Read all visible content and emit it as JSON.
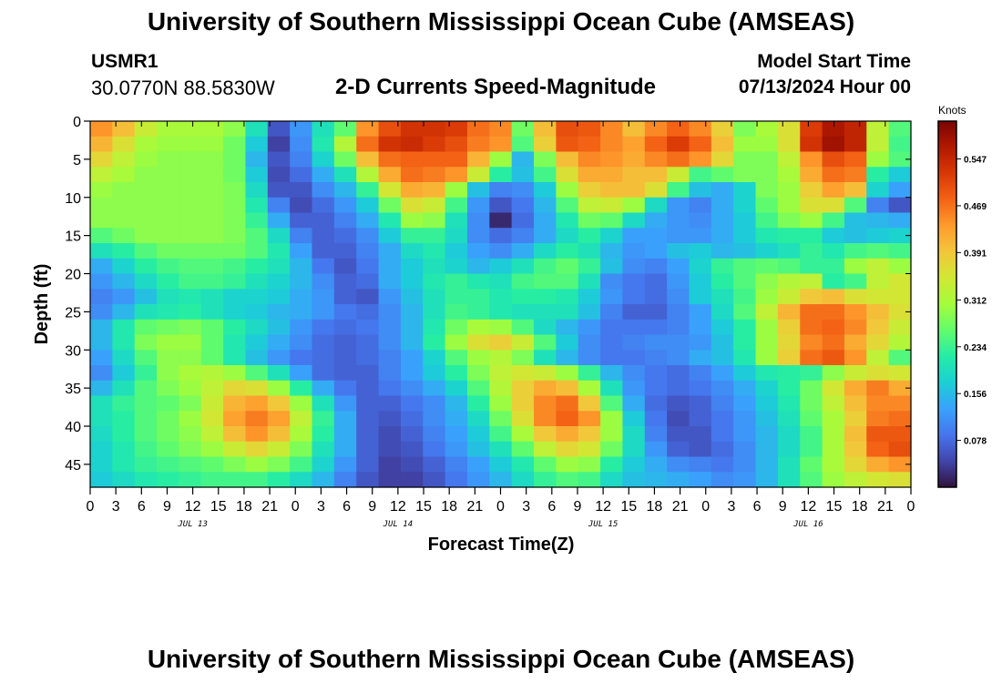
{
  "header": {
    "title": "University of Southern Mississippi Ocean Cube (AMSEAS)",
    "station_id": "USMR1",
    "station_coords": "30.0770N  88.5830W",
    "plot_title": "2-D Currents Speed-Magnitude",
    "start_label": "Model Start Time",
    "start_value": "07/13/2024 Hour 00"
  },
  "footer": {
    "title": "University of Southern Mississippi Ocean Cube (AMSEAS)"
  },
  "chart_data": {
    "type": "heatmap",
    "xlabel": "Forecast Time(Z)",
    "ylabel": "Depth (ft)",
    "x_tick_labels": [
      "0",
      "3",
      "6",
      "9",
      "12",
      "15",
      "18",
      "21",
      "0",
      "3",
      "6",
      "9",
      "12",
      "15",
      "18",
      "21",
      "0",
      "3",
      "6",
      "9",
      "12",
      "15",
      "18",
      "21",
      "0",
      "3",
      "6",
      "9",
      "12",
      "15",
      "18",
      "21",
      "0"
    ],
    "x_range_hours": [
      0,
      96
    ],
    "date_labels": [
      {
        "label": "JUL 13",
        "hour": 12
      },
      {
        "label": "JUL 14",
        "hour": 36
      },
      {
        "label": "JUL 15",
        "hour": 60
      },
      {
        "label": "JUL 16",
        "hour": 84
      }
    ],
    "y_tick_labels": [
      "0",
      "5",
      "10",
      "15",
      "20",
      "25",
      "30",
      "35",
      "40",
      "45"
    ],
    "ylim": [
      0,
      48
    ],
    "y_reversed": true,
    "colorbar": {
      "unit": "Knots",
      "tick_labels": [
        "0.547",
        "0.469",
        "0.391",
        "0.312",
        "0.234",
        "0.156",
        "0.078"
      ],
      "range": [
        0,
        0.61
      ]
    },
    "colorscale": [
      "#30123b",
      "#4145ab",
      "#4675ed",
      "#39a2fc",
      "#1bcfd4",
      "#24eca6",
      "#61fc6c",
      "#a4fc3b",
      "#d1e834",
      "#f3c63a",
      "#fe9b2d",
      "#f36315",
      "#d93806",
      "#b11901",
      "#7a0402"
    ],
    "speed_knots": [
      [
        0.44,
        0.4,
        0.34,
        0.31,
        0.31,
        0.31,
        0.29,
        0.2,
        0.06,
        0.12,
        0.2,
        0.26,
        0.44,
        0.5,
        0.53,
        0.53,
        0.52,
        0.47,
        0.45,
        0.27,
        0.4,
        0.5,
        0.49,
        0.45,
        0.4,
        0.45,
        0.48,
        0.45,
        0.38,
        0.28,
        0.31,
        0.36,
        0.52,
        0.57,
        0.55,
        0.33,
        0.25
      ],
      [
        0.41,
        0.36,
        0.31,
        0.3,
        0.3,
        0.3,
        0.27,
        0.17,
        0.04,
        0.11,
        0.21,
        0.32,
        0.47,
        0.53,
        0.54,
        0.52,
        0.5,
        0.46,
        0.44,
        0.25,
        0.38,
        0.49,
        0.48,
        0.45,
        0.43,
        0.48,
        0.52,
        0.48,
        0.4,
        0.3,
        0.3,
        0.36,
        0.53,
        0.58,
        0.55,
        0.33,
        0.24
      ],
      [
        0.37,
        0.33,
        0.3,
        0.29,
        0.29,
        0.29,
        0.27,
        0.15,
        0.06,
        0.1,
        0.18,
        0.27,
        0.4,
        0.47,
        0.48,
        0.48,
        0.48,
        0.41,
        0.3,
        0.15,
        0.28,
        0.4,
        0.45,
        0.44,
        0.42,
        0.45,
        0.47,
        0.44,
        0.37,
        0.28,
        0.28,
        0.33,
        0.44,
        0.5,
        0.48,
        0.3,
        0.25
      ],
      [
        0.33,
        0.31,
        0.29,
        0.29,
        0.29,
        0.29,
        0.27,
        0.17,
        0.05,
        0.08,
        0.14,
        0.2,
        0.32,
        0.42,
        0.47,
        0.46,
        0.44,
        0.34,
        0.22,
        0.16,
        0.24,
        0.36,
        0.42,
        0.42,
        0.4,
        0.4,
        0.34,
        0.24,
        0.26,
        0.28,
        0.28,
        0.31,
        0.42,
        0.47,
        0.46,
        0.22,
        0.17
      ],
      [
        0.3,
        0.29,
        0.29,
        0.29,
        0.29,
        0.29,
        0.28,
        0.19,
        0.06,
        0.06,
        0.11,
        0.15,
        0.23,
        0.35,
        0.42,
        0.41,
        0.3,
        0.16,
        0.1,
        0.11,
        0.17,
        0.3,
        0.38,
        0.4,
        0.4,
        0.36,
        0.24,
        0.16,
        0.14,
        0.18,
        0.28,
        0.3,
        0.38,
        0.43,
        0.4,
        0.18,
        0.13
      ],
      [
        0.29,
        0.29,
        0.29,
        0.29,
        0.29,
        0.29,
        0.28,
        0.21,
        0.1,
        0.05,
        0.08,
        0.12,
        0.17,
        0.27,
        0.36,
        0.34,
        0.24,
        0.12,
        0.06,
        0.09,
        0.15,
        0.25,
        0.33,
        0.34,
        0.3,
        0.19,
        0.12,
        0.1,
        0.14,
        0.18,
        0.26,
        0.3,
        0.36,
        0.36,
        0.25,
        0.1,
        0.06
      ],
      [
        0.29,
        0.29,
        0.29,
        0.29,
        0.29,
        0.29,
        0.28,
        0.23,
        0.14,
        0.07,
        0.07,
        0.1,
        0.14,
        0.21,
        0.3,
        0.29,
        0.2,
        0.11,
        0.02,
        0.08,
        0.14,
        0.21,
        0.27,
        0.26,
        0.19,
        0.14,
        0.12,
        0.11,
        0.14,
        0.17,
        0.24,
        0.28,
        0.3,
        0.24,
        0.16,
        0.15,
        0.14
      ],
      [
        0.25,
        0.27,
        0.29,
        0.29,
        0.29,
        0.29,
        0.28,
        0.25,
        0.19,
        0.1,
        0.07,
        0.08,
        0.11,
        0.17,
        0.23,
        0.23,
        0.19,
        0.11,
        0.08,
        0.1,
        0.14,
        0.19,
        0.22,
        0.18,
        0.13,
        0.13,
        0.12,
        0.12,
        0.14,
        0.17,
        0.21,
        0.22,
        0.22,
        0.17,
        0.16,
        0.17,
        0.18
      ],
      [
        0.2,
        0.22,
        0.25,
        0.27,
        0.27,
        0.27,
        0.27,
        0.25,
        0.21,
        0.13,
        0.07,
        0.07,
        0.1,
        0.14,
        0.19,
        0.21,
        0.17,
        0.13,
        0.11,
        0.14,
        0.19,
        0.22,
        0.2,
        0.15,
        0.12,
        0.13,
        0.16,
        0.17,
        0.15,
        0.16,
        0.18,
        0.2,
        0.23,
        0.21,
        0.24,
        0.25,
        0.24
      ],
      [
        0.14,
        0.18,
        0.22,
        0.24,
        0.25,
        0.25,
        0.24,
        0.22,
        0.2,
        0.15,
        0.09,
        0.06,
        0.09,
        0.14,
        0.17,
        0.2,
        0.18,
        0.15,
        0.17,
        0.2,
        0.24,
        0.26,
        0.23,
        0.16,
        0.11,
        0.1,
        0.13,
        0.18,
        0.23,
        0.25,
        0.26,
        0.25,
        0.23,
        0.23,
        0.3,
        0.33,
        0.3
      ],
      [
        0.12,
        0.15,
        0.19,
        0.22,
        0.24,
        0.24,
        0.23,
        0.2,
        0.18,
        0.15,
        0.11,
        0.07,
        0.08,
        0.14,
        0.17,
        0.21,
        0.23,
        0.21,
        0.2,
        0.24,
        0.25,
        0.25,
        0.2,
        0.11,
        0.09,
        0.08,
        0.12,
        0.17,
        0.22,
        0.25,
        0.29,
        0.32,
        0.33,
        0.22,
        0.24,
        0.33,
        0.35
      ],
      [
        0.1,
        0.12,
        0.16,
        0.2,
        0.21,
        0.2,
        0.18,
        0.18,
        0.17,
        0.14,
        0.12,
        0.07,
        0.06,
        0.12,
        0.16,
        0.2,
        0.23,
        0.23,
        0.21,
        0.22,
        0.22,
        0.21,
        0.17,
        0.12,
        0.09,
        0.08,
        0.11,
        0.17,
        0.2,
        0.24,
        0.3,
        0.34,
        0.39,
        0.4,
        0.36,
        0.35,
        0.35
      ],
      [
        0.11,
        0.15,
        0.2,
        0.21,
        0.22,
        0.2,
        0.18,
        0.17,
        0.15,
        0.14,
        0.12,
        0.09,
        0.08,
        0.11,
        0.15,
        0.2,
        0.24,
        0.23,
        0.21,
        0.2,
        0.2,
        0.2,
        0.16,
        0.1,
        0.07,
        0.07,
        0.1,
        0.13,
        0.19,
        0.25,
        0.33,
        0.41,
        0.47,
        0.47,
        0.44,
        0.4,
        0.36
      ],
      [
        0.15,
        0.21,
        0.26,
        0.27,
        0.28,
        0.26,
        0.22,
        0.19,
        0.16,
        0.12,
        0.09,
        0.08,
        0.09,
        0.11,
        0.15,
        0.21,
        0.27,
        0.31,
        0.3,
        0.25,
        0.19,
        0.15,
        0.12,
        0.09,
        0.09,
        0.09,
        0.1,
        0.13,
        0.17,
        0.22,
        0.3,
        0.38,
        0.47,
        0.48,
        0.45,
        0.39,
        0.34
      ],
      [
        0.15,
        0.21,
        0.28,
        0.3,
        0.3,
        0.26,
        0.21,
        0.17,
        0.14,
        0.11,
        0.08,
        0.07,
        0.08,
        0.11,
        0.15,
        0.22,
        0.3,
        0.36,
        0.38,
        0.34,
        0.25,
        0.17,
        0.11,
        0.09,
        0.1,
        0.11,
        0.11,
        0.12,
        0.16,
        0.22,
        0.3,
        0.37,
        0.45,
        0.47,
        0.42,
        0.37,
        0.32
      ],
      [
        0.13,
        0.19,
        0.25,
        0.29,
        0.29,
        0.26,
        0.21,
        0.16,
        0.12,
        0.09,
        0.08,
        0.07,
        0.08,
        0.1,
        0.13,
        0.18,
        0.25,
        0.3,
        0.32,
        0.28,
        0.2,
        0.15,
        0.11,
        0.09,
        0.09,
        0.1,
        0.11,
        0.14,
        0.16,
        0.21,
        0.3,
        0.38,
        0.47,
        0.49,
        0.44,
        0.33,
        0.25
      ],
      [
        0.11,
        0.17,
        0.23,
        0.29,
        0.31,
        0.32,
        0.3,
        0.25,
        0.2,
        0.13,
        0.08,
        0.07,
        0.07,
        0.1,
        0.13,
        0.17,
        0.22,
        0.28,
        0.33,
        0.35,
        0.34,
        0.3,
        0.23,
        0.15,
        0.11,
        0.09,
        0.08,
        0.1,
        0.13,
        0.17,
        0.21,
        0.22,
        0.23,
        0.29,
        0.34,
        0.36,
        0.35
      ],
      [
        0.15,
        0.2,
        0.25,
        0.28,
        0.3,
        0.33,
        0.37,
        0.36,
        0.3,
        0.22,
        0.14,
        0.09,
        0.07,
        0.09,
        0.11,
        0.14,
        0.18,
        0.25,
        0.32,
        0.38,
        0.42,
        0.4,
        0.31,
        0.2,
        0.12,
        0.09,
        0.08,
        0.09,
        0.11,
        0.14,
        0.18,
        0.22,
        0.27,
        0.35,
        0.42,
        0.46,
        0.42
      ],
      [
        0.2,
        0.23,
        0.25,
        0.26,
        0.28,
        0.34,
        0.41,
        0.43,
        0.39,
        0.3,
        0.2,
        0.12,
        0.07,
        0.07,
        0.09,
        0.11,
        0.15,
        0.22,
        0.3,
        0.38,
        0.45,
        0.47,
        0.39,
        0.25,
        0.14,
        0.08,
        0.06,
        0.07,
        0.1,
        0.13,
        0.17,
        0.21,
        0.27,
        0.33,
        0.4,
        0.45,
        0.45
      ],
      [
        0.2,
        0.22,
        0.25,
        0.27,
        0.3,
        0.35,
        0.43,
        0.46,
        0.43,
        0.33,
        0.23,
        0.14,
        0.07,
        0.06,
        0.08,
        0.11,
        0.14,
        0.19,
        0.27,
        0.36,
        0.45,
        0.48,
        0.44,
        0.3,
        0.17,
        0.09,
        0.05,
        0.07,
        0.09,
        0.12,
        0.16,
        0.2,
        0.26,
        0.31,
        0.38,
        0.46,
        0.47
      ],
      [
        0.19,
        0.22,
        0.25,
        0.27,
        0.29,
        0.33,
        0.4,
        0.44,
        0.4,
        0.31,
        0.22,
        0.14,
        0.07,
        0.05,
        0.07,
        0.1,
        0.13,
        0.17,
        0.24,
        0.31,
        0.39,
        0.42,
        0.39,
        0.3,
        0.19,
        0.1,
        0.06,
        0.06,
        0.09,
        0.12,
        0.15,
        0.19,
        0.24,
        0.31,
        0.4,
        0.49,
        0.49
      ],
      [
        0.18,
        0.21,
        0.24,
        0.26,
        0.28,
        0.3,
        0.34,
        0.37,
        0.34,
        0.28,
        0.2,
        0.14,
        0.07,
        0.05,
        0.06,
        0.09,
        0.12,
        0.16,
        0.2,
        0.26,
        0.33,
        0.37,
        0.35,
        0.27,
        0.19,
        0.12,
        0.07,
        0.06,
        0.08,
        0.11,
        0.15,
        0.19,
        0.24,
        0.31,
        0.39,
        0.48,
        0.5
      ],
      [
        0.18,
        0.21,
        0.23,
        0.24,
        0.25,
        0.26,
        0.28,
        0.3,
        0.28,
        0.24,
        0.18,
        0.12,
        0.07,
        0.04,
        0.05,
        0.07,
        0.1,
        0.13,
        0.17,
        0.21,
        0.26,
        0.3,
        0.29,
        0.22,
        0.17,
        0.14,
        0.11,
        0.1,
        0.09,
        0.11,
        0.15,
        0.2,
        0.26,
        0.31,
        0.37,
        0.42,
        0.44
      ],
      [
        0.17,
        0.19,
        0.21,
        0.22,
        0.23,
        0.24,
        0.24,
        0.24,
        0.22,
        0.19,
        0.15,
        0.1,
        0.06,
        0.04,
        0.04,
        0.06,
        0.09,
        0.12,
        0.15,
        0.19,
        0.23,
        0.25,
        0.24,
        0.19,
        0.16,
        0.15,
        0.14,
        0.13,
        0.11,
        0.12,
        0.15,
        0.2,
        0.25,
        0.3,
        0.33,
        0.35,
        0.36
      ]
    ]
  }
}
